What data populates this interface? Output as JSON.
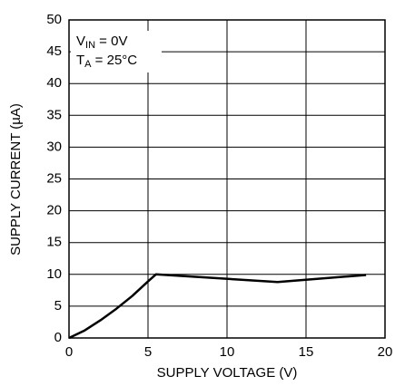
{
  "chart_data": {
    "type": "line",
    "x_label": "SUPPLY VOLTAGE (V)",
    "y_label": "SUPPLY CURRENT (µA)",
    "annotations": [
      {
        "parts": [
          "V",
          "IN",
          " = 0V"
        ]
      },
      {
        "parts": [
          "T",
          "A",
          " = 25°C"
        ]
      }
    ],
    "x": [
      0,
      1,
      2,
      3,
      4,
      5,
      5.5,
      13.2,
      18.8
    ],
    "values": [
      0,
      1.2,
      2.8,
      4.6,
      6.6,
      8.9,
      10,
      8.8,
      9.9
    ],
    "color": "#000000",
    "xlim": [
      0,
      20
    ],
    "xticks": [
      0,
      5,
      10,
      15,
      20
    ],
    "ylim": [
      0,
      50
    ],
    "yticks": [
      0,
      5,
      10,
      15,
      20,
      25,
      30,
      35,
      40,
      45,
      50
    ],
    "grid": true
  }
}
